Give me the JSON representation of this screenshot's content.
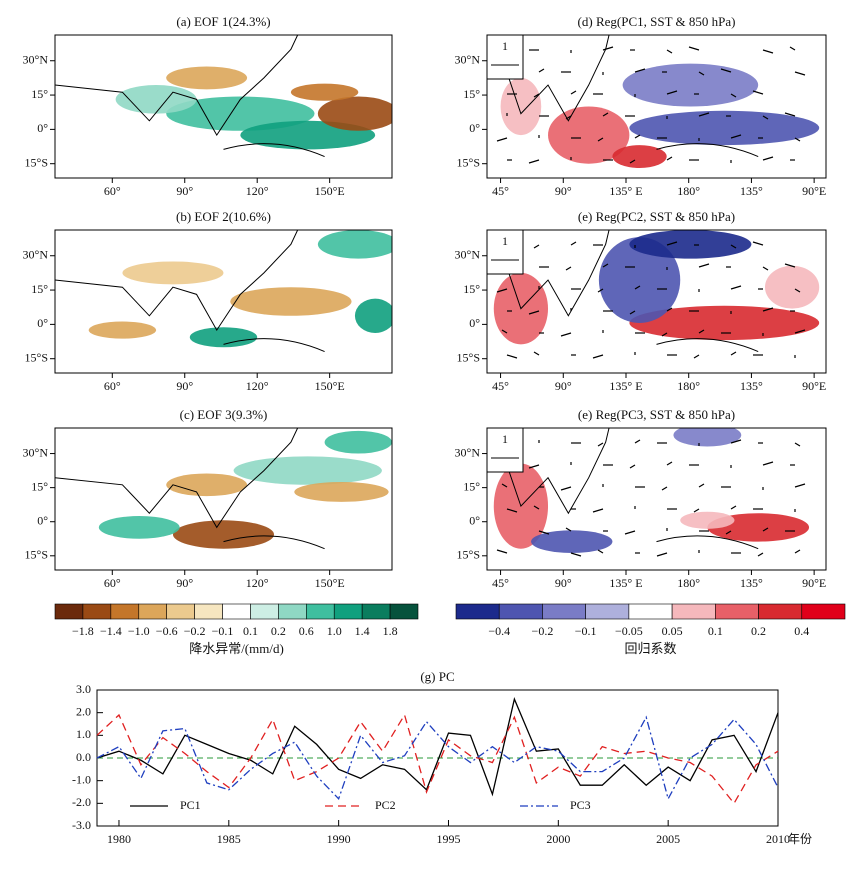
{
  "maps": [
    {
      "title": "(a) EOF 1(24.3%)",
      "lon_labels": [
        "60°",
        "90°",
        "120°",
        "150°E"
      ],
      "lat_labels": [
        "30°N",
        "15°",
        "0°",
        "15°S"
      ],
      "kind": "rain"
    },
    {
      "title": "(b) EOF 2(10.6%)",
      "lon_labels": [
        "60°",
        "90°",
        "120°",
        "150°E"
      ],
      "lat_labels": [
        "30°N",
        "15°",
        "0°",
        "15°S"
      ],
      "kind": "rain"
    },
    {
      "title": "(c) EOF 3(9.3%)",
      "lon_labels": [
        "60°",
        "90°",
        "120°",
        "150°E"
      ],
      "lat_labels": [
        "30°N",
        "15°",
        "0°",
        "15°S"
      ],
      "kind": "rain"
    },
    {
      "title": "(d) Reg(PC1, SST & 850 hPa)",
      "lon_labels": [
        "45°",
        "90°",
        "135° E",
        "180°",
        "135°",
        "90°E"
      ],
      "lat_labels": [
        "30°N",
        "15°",
        "0°",
        "15°S"
      ],
      "kind": "sst",
      "vector_ref": "1"
    },
    {
      "title": "(e) Reg(PC2, SST & 850 hPa)",
      "lon_labels": [
        "45°",
        "90°",
        "135° E",
        "180°",
        "135°",
        "90°E"
      ],
      "lat_labels": [
        "30°N",
        "15°",
        "0°",
        "15°S"
      ],
      "kind": "sst",
      "vector_ref": "1"
    },
    {
      "title": "(e) Reg(PC3, SST & 850 hPa)",
      "lon_labels": [
        "45°",
        "90°",
        "135° E",
        "180°",
        "135°",
        "90°E"
      ],
      "lat_labels": [
        "30°N",
        "15°",
        "0°",
        "15°S"
      ],
      "kind": "sst",
      "vector_ref": "1"
    }
  ],
  "colorbars": [
    {
      "title": "降水异常/(mm/d)",
      "labels": [
        "−1.8",
        "−1.4",
        "−1.0",
        "−0.6",
        "−0.2",
        "−0.1",
        "0.1",
        "0.2",
        "0.6",
        "1.0",
        "1.4",
        "1.8"
      ],
      "colors": [
        "#6b2a0c",
        "#9a4a14",
        "#c4762a",
        "#dca65a",
        "#ecca8e",
        "#f6e6c0",
        "#ffffff",
        "#cdeee4",
        "#8fd8c4",
        "#3fbf9f",
        "#10a07e",
        "#0a7d5e",
        "#06523c"
      ]
    },
    {
      "title": "回归系数",
      "labels": [
        "−0.4",
        "−0.2",
        "−0.1",
        "−0.05",
        "0.05",
        "0.1",
        "0.2",
        "0.4"
      ],
      "colors": [
        "#1c2a8c",
        "#4e55b0",
        "#7a7cc6",
        "#aeb0dc",
        "#ffffff",
        "#f5b8bc",
        "#e86068",
        "#d82a30",
        "#e0001a"
      ]
    }
  ],
  "chart_data": {
    "type": "line",
    "title": "(g) PC",
    "x_label": "年份",
    "x": [
      1979,
      1980,
      1981,
      1982,
      1983,
      1984,
      1985,
      1986,
      1987,
      1988,
      1989,
      1990,
      1991,
      1992,
      1993,
      1994,
      1995,
      1996,
      1997,
      1998,
      1999,
      2000,
      2001,
      2002,
      2003,
      2004,
      2005,
      2006,
      2007,
      2008,
      2009,
      2010
    ],
    "xlim": [
      1979,
      2010
    ],
    "xticks": [
      1980,
      1985,
      1990,
      1995,
      2000,
      2005,
      2010
    ],
    "ylim": [
      -3,
      3
    ],
    "yticks": [
      {
        "value": -3,
        "label": "-3.0"
      },
      {
        "value": -2,
        "label": "-2.0"
      },
      {
        "value": -1,
        "label": "-1.0"
      },
      {
        "value": 0,
        "label": "0.0"
      },
      {
        "value": 1,
        "label": "1.0"
      },
      {
        "value": 2,
        "label": "2.0"
      },
      {
        "value": 3,
        "label": "3.0"
      }
    ],
    "series": [
      {
        "name": "PC1",
        "color": "#000000",
        "dash": "solid",
        "values": [
          0.0,
          0.3,
          -0.1,
          -0.7,
          1.0,
          0.6,
          0.2,
          -0.1,
          -0.7,
          1.4,
          0.6,
          -0.5,
          -0.9,
          -0.3,
          -0.5,
          -1.4,
          1.1,
          1.0,
          -1.6,
          2.6,
          0.3,
          0.4,
          -1.2,
          -1.2,
          -0.3,
          -1.2,
          -0.4,
          -1.0,
          0.8,
          1.0,
          -0.6,
          2.0
        ]
      },
      {
        "name": "PC2",
        "color": "#e02020",
        "dash": "dashed",
        "values": [
          1.0,
          1.9,
          -0.3,
          0.9,
          0.2,
          -0.6,
          -1.3,
          0.0,
          1.7,
          -1.0,
          -0.6,
          0.0,
          1.6,
          0.3,
          1.9,
          -1.5,
          0.8,
          0.1,
          -0.2,
          1.8,
          -1.1,
          -0.4,
          -0.8,
          0.5,
          0.2,
          0.3,
          0.0,
          -0.2,
          -0.8,
          -2.0,
          -0.3,
          0.3
        ]
      },
      {
        "name": "PC3",
        "color": "#1f3fbf",
        "dash": "dashdot",
        "values": [
          0.0,
          0.5,
          -0.9,
          1.2,
          1.3,
          -1.1,
          -1.4,
          -0.5,
          0.2,
          0.7,
          -0.8,
          -1.8,
          1.0,
          -0.2,
          0.1,
          1.6,
          0.5,
          -0.2,
          0.5,
          -0.2,
          0.5,
          0.3,
          -0.6,
          -0.6,
          0.0,
          1.8,
          -1.8,
          0.0,
          0.6,
          1.7,
          0.6,
          -1.3
        ]
      }
    ]
  }
}
